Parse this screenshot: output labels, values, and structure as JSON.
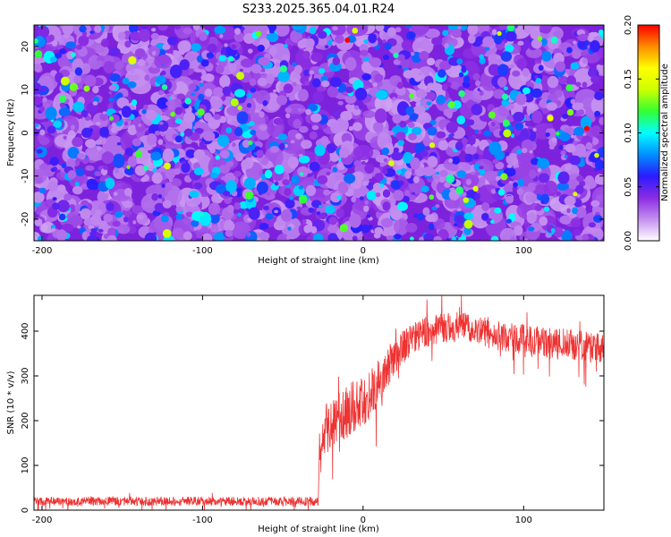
{
  "chart_data": [
    {
      "type": "heatmap",
      "title": "S233.2025.365.04.01.R24",
      "xlabel": "Height of straight line (km)",
      "ylabel": "Frequency (Hz)",
      "xlim": [
        -205,
        150
      ],
      "ylim": [
        -25,
        25
      ],
      "x_ticks": [
        -200,
        -100,
        0,
        100
      ],
      "x_tick_labels": [
        "-200",
        "-100",
        "0",
        "100"
      ],
      "y_ticks": [
        -20,
        -10,
        0,
        10,
        20
      ],
      "y_tick_labels": [
        "-20",
        "-10",
        "0",
        "10",
        "20"
      ],
      "grid": false,
      "description_values": {
        "background_amplitude": 0.02,
        "blob_amplitude_typical": 0.05,
        "blob_amplitude_max": 0.2
      },
      "colorbar": {
        "label": "Normalized spectral amplitude",
        "range": [
          0.0,
          0.2
        ],
        "ticks": [
          0.0,
          0.05,
          0.1,
          0.15,
          0.2
        ],
        "tick_labels": [
          "0.00",
          "0.05",
          "0.10",
          "0.15",
          "0.20"
        ],
        "colors": [
          "#ffffff",
          "#c48ef0",
          "#8a2be2",
          "#2a1cff",
          "#0090ff",
          "#00ffff",
          "#33ff33",
          "#ccff00",
          "#ffff00",
          "#ff8c00",
          "#ff0000"
        ]
      }
    },
    {
      "type": "line",
      "xlabel": "Height of straight line (km)",
      "ylabel": "SNR (10 * v/v)",
      "xlim": [
        -205,
        150
      ],
      "ylim": [
        0,
        480
      ],
      "x_ticks": [
        -200,
        -100,
        0,
        100
      ],
      "x_tick_labels": [
        "-200",
        "-100",
        "0",
        "100"
      ],
      "y_ticks": [
        0,
        100,
        200,
        300,
        400
      ],
      "y_tick_labels": [
        "0",
        "100",
        "200",
        "300",
        "400"
      ],
      "grid": false,
      "series": [
        {
          "name": "SNR",
          "color": "#ee3333",
          "x": [
            -205,
            -180,
            -150,
            -120,
            -90,
            -60,
            -40,
            -28,
            -27,
            -25,
            -22,
            -18,
            -15,
            -10,
            -5,
            0,
            5,
            10,
            15,
            20,
            25,
            30,
            40,
            50,
            60,
            70,
            80,
            90,
            100,
            110,
            120,
            130,
            140,
            150
          ],
          "values": [
            20,
            20,
            20,
            20,
            20,
            20,
            20,
            20,
            150,
            160,
            175,
            195,
            210,
            220,
            230,
            245,
            260,
            290,
            320,
            345,
            365,
            380,
            400,
            410,
            410,
            405,
            395,
            385,
            380,
            375,
            372,
            370,
            365,
            360
          ],
          "noise_amplitude": [
            10,
            10,
            10,
            10,
            10,
            10,
            10,
            10,
            40,
            45,
            50,
            55,
            60,
            60,
            60,
            60,
            55,
            50,
            45,
            40,
            38,
            35,
            35,
            35,
            35,
            35,
            35,
            35,
            35,
            35,
            35,
            35,
            35,
            35
          ]
        }
      ]
    }
  ]
}
